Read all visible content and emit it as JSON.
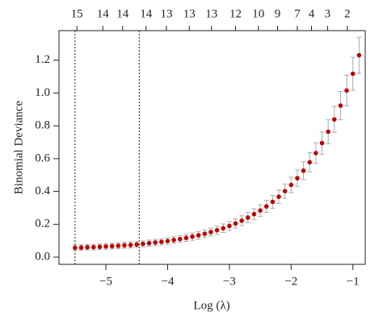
{
  "chart_data": {
    "type": "errorbar",
    "xlabel": "Log (λ)",
    "ylabel": "Binomial Deviance",
    "x": [
      -5.5,
      -5.4,
      -5.3,
      -5.2,
      -5.1,
      -5.0,
      -4.9,
      -4.8,
      -4.7,
      -4.6,
      -4.5,
      -4.4,
      -4.3,
      -4.2,
      -4.1,
      -4.0,
      -3.9,
      -3.8,
      -3.7,
      -3.6,
      -3.5,
      -3.4,
      -3.3,
      -3.2,
      -3.1,
      -3.0,
      -2.9,
      -2.8,
      -2.7,
      -2.6,
      -2.5,
      -2.4,
      -2.3,
      -2.2,
      -2.1,
      -2.0,
      -1.9,
      -1.8,
      -1.7,
      -1.6,
      -1.5,
      -1.4,
      -1.3,
      -1.2,
      -1.1,
      -1.0,
      -0.9
    ],
    "values": [
      0.057,
      0.058,
      0.06,
      0.061,
      0.063,
      0.065,
      0.067,
      0.069,
      0.072,
      0.074,
      0.077,
      0.081,
      0.085,
      0.089,
      0.093,
      0.098,
      0.104,
      0.11,
      0.117,
      0.125,
      0.133,
      0.142,
      0.153,
      0.164,
      0.176,
      0.19,
      0.205,
      0.222,
      0.241,
      0.262,
      0.284,
      0.309,
      0.337,
      0.368,
      0.402,
      0.44,
      0.481,
      0.527,
      0.578,
      0.634,
      0.695,
      0.764,
      0.839,
      0.923,
      1.015,
      1.117,
      1.23
    ],
    "errors": [
      0.017,
      0.017,
      0.017,
      0.017,
      0.017,
      0.017,
      0.017,
      0.018,
      0.018,
      0.018,
      0.018,
      0.018,
      0.019,
      0.019,
      0.019,
      0.02,
      0.02,
      0.021,
      0.021,
      0.022,
      0.023,
      0.023,
      0.024,
      0.025,
      0.026,
      0.027,
      0.028,
      0.03,
      0.031,
      0.033,
      0.035,
      0.037,
      0.039,
      0.041,
      0.044,
      0.047,
      0.05,
      0.054,
      0.058,
      0.063,
      0.068,
      0.073,
      0.079,
      0.086,
      0.093,
      0.101,
      0.11
    ],
    "color": "#c00000",
    "error_color": "#aaaaaa",
    "vlines": [
      -5.5,
      -4.46
    ],
    "xlim": [
      -5.76,
      -0.8
    ],
    "ylim": [
      -0.044,
      1.38
    ],
    "xticks": [
      {
        "value": -5,
        "label": "−5"
      },
      {
        "value": -4,
        "label": "−4"
      },
      {
        "value": -3,
        "label": "−3"
      },
      {
        "value": -2,
        "label": "−2"
      },
      {
        "value": -1,
        "label": "−1"
      }
    ],
    "yticks": [
      {
        "value": 0,
        "label": "0.0"
      },
      0.2,
      0.4,
      0.6,
      0.8,
      {
        "value": 1,
        "label": "1.0"
      },
      1.2
    ],
    "x2ticks": [
      {
        "value": -5.47,
        "label": "15"
      },
      {
        "value": -5.05,
        "label": "14"
      },
      {
        "value": -4.73,
        "label": "14"
      },
      {
        "value": -4.35,
        "label": "14"
      },
      {
        "value": -4.02,
        "label": "13"
      },
      {
        "value": -3.65,
        "label": "13"
      },
      {
        "value": -3.29,
        "label": "13"
      },
      {
        "value": -2.9,
        "label": "12"
      },
      {
        "value": -2.53,
        "label": "10"
      },
      {
        "value": -2.22,
        "label": "9"
      },
      {
        "value": -1.9,
        "label": "7"
      },
      {
        "value": -1.67,
        "label": "4"
      },
      {
        "value": -1.41,
        "label": "3"
      },
      {
        "value": -1.09,
        "label": "2"
      }
    ]
  }
}
